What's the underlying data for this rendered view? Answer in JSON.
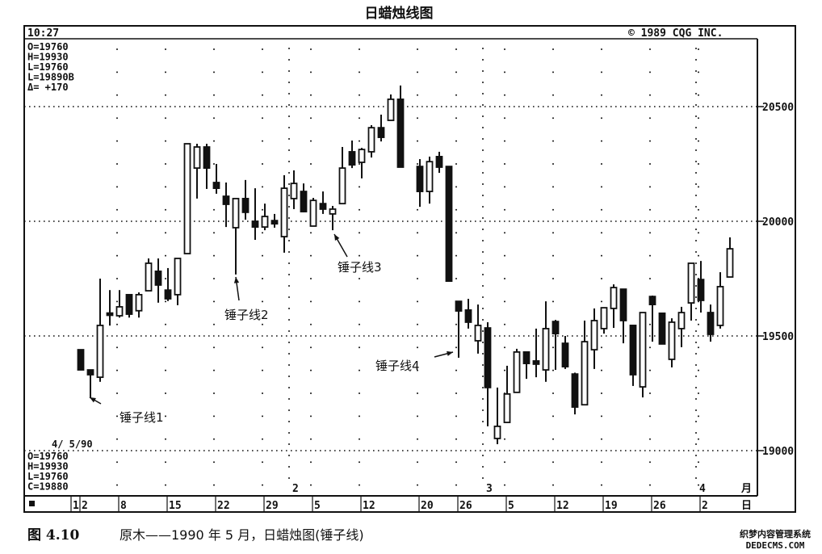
{
  "title": "日蜡烛线图",
  "header": {
    "time": "10:27",
    "copyright": "©  1989 CQG INC."
  },
  "top_readout": [
    "O=19760",
    "H=19930",
    "L=19760",
    "L=19890B",
    "Δ=  +170"
  ],
  "bottom_readout": {
    "date": "4/ 5/90",
    "lines": [
      "O=19760",
      "H=19930",
      "L=19760",
      "C=19880"
    ]
  },
  "caption": {
    "figure": "图 4.10",
    "text": "原木——1990 年 5 月，日蜡烛图(锤子线)"
  },
  "watermark": {
    "line1": "织梦内容管理系统",
    "line2": "DEDECMS.COM"
  },
  "colors": {
    "ink": "#111111",
    "paper": "#ffffff"
  },
  "chart_data": {
    "type": "candlestick",
    "title": "日蜡烛线图",
    "y_ticks": [
      19000,
      19500,
      20000,
      20500
    ],
    "ylim": [
      18800,
      20880
    ],
    "grid": "dotted",
    "x_week_labels": [
      "1",
      "2",
      "8",
      "15",
      "22",
      "29",
      "5",
      "12",
      "20",
      "26",
      "5",
      "12",
      "19",
      "26",
      "2"
    ],
    "x_week_dates": [
      "1990-01-01",
      "1990-01-02",
      "1990-01-08",
      "1990-01-15",
      "1990-01-22",
      "1990-01-29",
      "1990-02-05",
      "1990-02-12",
      "1990-02-20",
      "1990-02-26",
      "1990-03-05",
      "1990-03-12",
      "1990-03-19",
      "1990-03-26",
      "1990-04-02"
    ],
    "month_labels": [
      {
        "label": "2",
        "date": "1990-02-01"
      },
      {
        "label": "3",
        "date": "1990-03-01"
      },
      {
        "label": "4",
        "date": "1990-04-02"
      }
    ],
    "month_unit": "月",
    "day_unit": "日",
    "annotations": [
      {
        "text": "锤子线1",
        "date": "1990-01-03"
      },
      {
        "text": "锤子线2",
        "date": "1990-01-24"
      },
      {
        "text": "锤子线3",
        "date": "1990-02-07"
      },
      {
        "text": "锤子线4",
        "date": "1990-02-26"
      }
    ],
    "candles": [
      {
        "d": "1990-01-02",
        "o": 19440,
        "h": 19440,
        "l": 19352,
        "c": 19352
      },
      {
        "d": "1990-01-03",
        "o": 19352,
        "h": 19352,
        "l": 19229,
        "c": 19331
      },
      {
        "d": "1990-01-04",
        "o": 19320,
        "h": 19750,
        "l": 19300,
        "c": 19546
      },
      {
        "d": "1990-01-05",
        "o": 19600,
        "h": 19700,
        "l": 19545,
        "c": 19590
      },
      {
        "d": "1990-01-08",
        "o": 19588,
        "h": 19700,
        "l": 19580,
        "c": 19627
      },
      {
        "d": "1990-01-09",
        "o": 19680,
        "h": 19680,
        "l": 19580,
        "c": 19595
      },
      {
        "d": "1990-01-10",
        "o": 19610,
        "h": 19690,
        "l": 19580,
        "c": 19680
      },
      {
        "d": "1990-01-11",
        "o": 19697,
        "h": 19838,
        "l": 19697,
        "c": 19817
      },
      {
        "d": "1990-01-12",
        "o": 19782,
        "h": 19838,
        "l": 19645,
        "c": 19722
      },
      {
        "d": "1990-01-15",
        "o": 19700,
        "h": 19796,
        "l": 19652,
        "c": 19662
      },
      {
        "d": "1990-01-16",
        "o": 19680,
        "h": 19838,
        "l": 19634,
        "c": 19838
      },
      {
        "d": "1990-01-17",
        "o": 19859,
        "h": 20338,
        "l": 19859,
        "c": 20338
      },
      {
        "d": "1990-01-18",
        "o": 20232,
        "h": 20338,
        "l": 20099,
        "c": 20324
      },
      {
        "d": "1990-01-19",
        "o": 20324,
        "h": 20338,
        "l": 20141,
        "c": 20232
      },
      {
        "d": "1990-01-22",
        "o": 20169,
        "h": 20250,
        "l": 20120,
        "c": 20144
      },
      {
        "d": "1990-01-23",
        "o": 20109,
        "h": 20169,
        "l": 19975,
        "c": 20074
      },
      {
        "d": "1990-01-24",
        "o": 19972,
        "h": 20099,
        "l": 19768,
        "c": 20099
      },
      {
        "d": "1990-01-25",
        "o": 20099,
        "h": 20180,
        "l": 20007,
        "c": 20039
      },
      {
        "d": "1990-01-26",
        "o": 20000,
        "h": 20144,
        "l": 19919,
        "c": 19975
      },
      {
        "d": "1990-01-29",
        "o": 19975,
        "h": 20077,
        "l": 19961,
        "c": 20021
      },
      {
        "d": "1990-01-30",
        "o": 20003,
        "h": 20032,
        "l": 19972,
        "c": 19989
      },
      {
        "d": "1990-01-31",
        "o": 19933,
        "h": 20201,
        "l": 19863,
        "c": 20144
      },
      {
        "d": "1990-02-01",
        "o": 20099,
        "h": 20222,
        "l": 20053,
        "c": 20165
      },
      {
        "d": "1990-02-02",
        "o": 20130,
        "h": 20165,
        "l": 20039,
        "c": 20042
      },
      {
        "d": "1990-02-05",
        "o": 19979,
        "h": 20102,
        "l": 19979,
        "c": 20091
      },
      {
        "d": "1990-02-06",
        "o": 20077,
        "h": 20130,
        "l": 20032,
        "c": 20053
      },
      {
        "d": "1990-02-07",
        "o": 20032,
        "h": 20067,
        "l": 19961,
        "c": 20053
      },
      {
        "d": "1990-02-08",
        "o": 20077,
        "h": 20324,
        "l": 20077,
        "c": 20232
      },
      {
        "d": "1990-02-09",
        "o": 20303,
        "h": 20352,
        "l": 20232,
        "c": 20246
      },
      {
        "d": "1990-02-12",
        "o": 20257,
        "h": 20320,
        "l": 20187,
        "c": 20313
      },
      {
        "d": "1990-02-13",
        "o": 20303,
        "h": 20419,
        "l": 20278,
        "c": 20408
      },
      {
        "d": "1990-02-14",
        "o": 20408,
        "h": 20465,
        "l": 20348,
        "c": 20366
      },
      {
        "d": "1990-02-15",
        "o": 20440,
        "h": 20553,
        "l": 20440,
        "c": 20532
      },
      {
        "d": "1990-02-16",
        "o": 20532,
        "h": 20592,
        "l": 20236,
        "c": 20236
      },
      {
        "d": "1990-02-20",
        "o": 20239,
        "h": 20271,
        "l": 20063,
        "c": 20130
      },
      {
        "d": "1990-02-21",
        "o": 20130,
        "h": 20282,
        "l": 20077,
        "c": 20260
      },
      {
        "d": "1990-02-22",
        "o": 20282,
        "h": 20303,
        "l": 20211,
        "c": 20236
      },
      {
        "d": "1990-02-23",
        "o": 20239,
        "h": 20239,
        "l": 19739,
        "c": 19739
      },
      {
        "d": "1990-02-26",
        "o": 19651,
        "h": 19651,
        "l": 19405,
        "c": 19609
      },
      {
        "d": "1990-02-27",
        "o": 19613,
        "h": 19662,
        "l": 19532,
        "c": 19560
      },
      {
        "d": "1990-02-28",
        "o": 19479,
        "h": 19637,
        "l": 19423,
        "c": 19546
      },
      {
        "d": "1990-03-01",
        "o": 19535,
        "h": 19560,
        "l": 19106,
        "c": 19275
      },
      {
        "d": "1990-03-02",
        "o": 19053,
        "h": 19275,
        "l": 19028,
        "c": 19106
      },
      {
        "d": "1990-03-05",
        "o": 19123,
        "h": 19370,
        "l": 19123,
        "c": 19247
      },
      {
        "d": "1990-03-06",
        "o": 19254,
        "h": 19444,
        "l": 19254,
        "c": 19430
      },
      {
        "d": "1990-03-07",
        "o": 19430,
        "h": 19430,
        "l": 19313,
        "c": 19380
      },
      {
        "d": "1990-03-08",
        "o": 19391,
        "h": 19532,
        "l": 19320,
        "c": 19377
      },
      {
        "d": "1990-03-09",
        "o": 19352,
        "h": 19651,
        "l": 19300,
        "c": 19532
      },
      {
        "d": "1990-03-12",
        "o": 19563,
        "h": 19570,
        "l": 19352,
        "c": 19510
      },
      {
        "d": "1990-03-13",
        "o": 19468,
        "h": 19500,
        "l": 19356,
        "c": 19366
      },
      {
        "d": "1990-03-14",
        "o": 19334,
        "h": 19340,
        "l": 19158,
        "c": 19190
      },
      {
        "d": "1990-03-15",
        "o": 19200,
        "h": 19567,
        "l": 19200,
        "c": 19475
      },
      {
        "d": "1990-03-16",
        "o": 19440,
        "h": 19620,
        "l": 19356,
        "c": 19567
      },
      {
        "d": "1990-03-19",
        "o": 19532,
        "h": 19623,
        "l": 19510,
        "c": 19623
      },
      {
        "d": "1990-03-20",
        "o": 19620,
        "h": 19725,
        "l": 19535,
        "c": 19711
      },
      {
        "d": "1990-03-21",
        "o": 19704,
        "h": 19704,
        "l": 19468,
        "c": 19567
      },
      {
        "d": "1990-03-22",
        "o": 19546,
        "h": 19546,
        "l": 19282,
        "c": 19331
      },
      {
        "d": "1990-03-23",
        "o": 19278,
        "h": 19602,
        "l": 19232,
        "c": 19602
      },
      {
        "d": "1990-03-26",
        "o": 19672,
        "h": 19676,
        "l": 19475,
        "c": 19637
      },
      {
        "d": "1990-03-27",
        "o": 19599,
        "h": 19599,
        "l": 19465,
        "c": 19465
      },
      {
        "d": "1990-03-28",
        "o": 19398,
        "h": 19577,
        "l": 19363,
        "c": 19560
      },
      {
        "d": "1990-03-29",
        "o": 19532,
        "h": 19627,
        "l": 19451,
        "c": 19602
      },
      {
        "d": "1990-03-30",
        "o": 19644,
        "h": 19817,
        "l": 19567,
        "c": 19817
      },
      {
        "d": "1990-04-02",
        "o": 19746,
        "h": 19827,
        "l": 19602,
        "c": 19655
      },
      {
        "d": "1990-04-03",
        "o": 19602,
        "h": 19637,
        "l": 19475,
        "c": 19507
      },
      {
        "d": "1990-04-04",
        "o": 19546,
        "h": 19778,
        "l": 19532,
        "c": 19715
      },
      {
        "d": "1990-04-05",
        "o": 19757,
        "h": 19930,
        "l": 19757,
        "c": 19880
      }
    ]
  }
}
